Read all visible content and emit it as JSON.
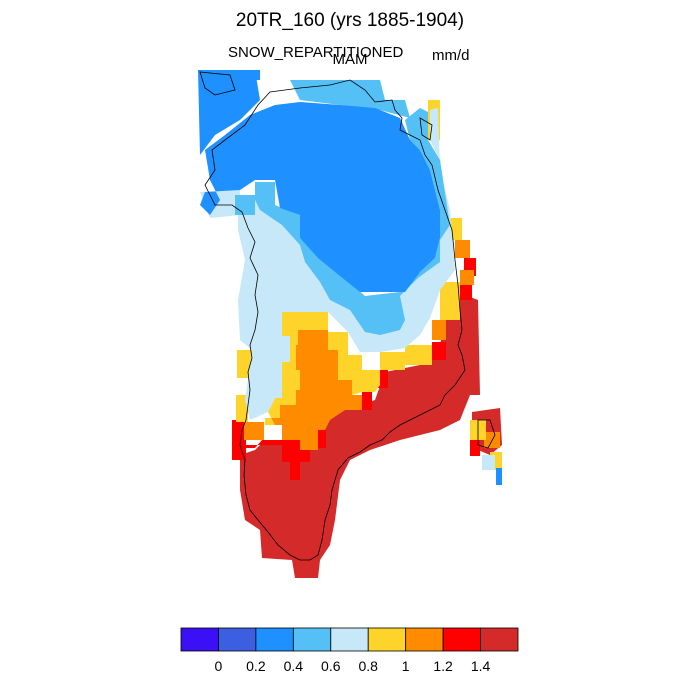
{
  "title": "20TR_160 (yrs 1885-1904)",
  "variable": "SNOW_REPARTITIONED",
  "season": "MAM",
  "units": "mm/d",
  "legend": {
    "colors": [
      "#3b10f5",
      "#3b5fe0",
      "#1e90ff",
      "#55c0f5",
      "#c6e8f8",
      "#ffd42a",
      "#ff8c00",
      "#ff0000",
      "#d42a2a"
    ],
    "tick_labels": [
      "0",
      "0.2",
      "0.4",
      "0.6",
      "0.8",
      "1",
      "1.2",
      "1.4"
    ]
  }
}
